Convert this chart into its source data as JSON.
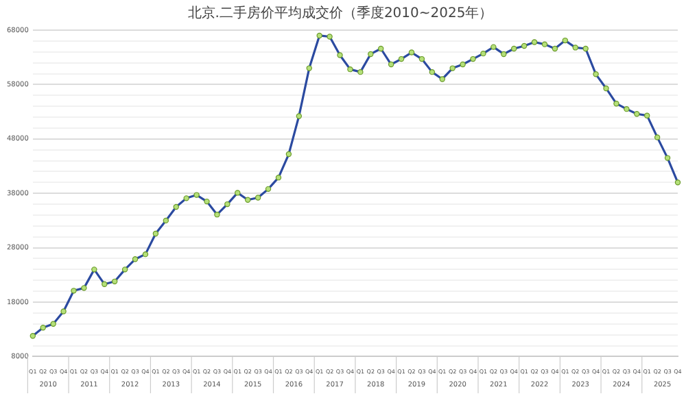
{
  "chart_data": {
    "type": "line",
    "title": "北京.二手房价平均成交价（季度2010~2025年）",
    "categories": [
      "Q1",
      "Q2",
      "Q3",
      "Q4",
      "Q1",
      "Q2",
      "Q3",
      "Q4",
      "Q1",
      "Q2",
      "Q3",
      "Q4",
      "Q1",
      "Q2",
      "Q3",
      "Q4",
      "Q1",
      "Q2",
      "Q3",
      "Q4",
      "Q1",
      "Q2",
      "Q3",
      "Q4",
      "Q1",
      "Q2",
      "Q3",
      "Q4",
      "Q1",
      "Q2",
      "Q3",
      "Q4",
      "Q1",
      "Q2",
      "Q3",
      "Q4",
      "Q1",
      "Q2",
      "Q3",
      "Q4",
      "Q1",
      "Q2",
      "Q3",
      "Q4",
      "Q1",
      "Q2",
      "Q3",
      "Q4",
      "Q1",
      "Q2",
      "Q3",
      "Q4",
      "Q1",
      "Q2",
      "Q3",
      "Q4",
      "Q1",
      "Q2",
      "Q3",
      "Q4",
      "Q1",
      "Q2",
      "Q3",
      "Q4"
    ],
    "series": [
      {
        "color": "#2b4aa0",
        "values": [
          11800,
          13300,
          14000,
          16300,
          20100,
          20600,
          24000,
          21300,
          21800,
          24000,
          25900,
          26800,
          30600,
          33000,
          35500,
          37100,
          37700,
          36500,
          34100,
          36000,
          38100,
          36800,
          37200,
          38800,
          40900,
          45200,
          52200,
          61000,
          67000,
          66800,
          63400,
          60800,
          60300,
          63600,
          64600,
          61700,
          62700,
          63900,
          62700,
          60300,
          59000,
          61000,
          61700,
          62700,
          63700,
          64900,
          63600,
          64600,
          65100,
          65800,
          65400,
          64600,
          66100,
          64800,
          64600,
          59900,
          57300,
          54500,
          53500,
          52600,
          52300,
          48300,
          44500,
          40000
        ]
      }
    ],
    "ylim": [
      8000,
      68000
    ],
    "yticks": [
      8000,
      {
        "value": 10000,
        "label": null
      },
      {
        "value": 12000,
        "label": null
      },
      {
        "value": 14000,
        "label": null
      },
      {
        "value": 16000,
        "label": null
      },
      18000,
      {
        "value": 20000,
        "label": null
      },
      {
        "value": 22000,
        "label": null
      },
      {
        "value": 24000,
        "label": null
      },
      {
        "value": 26000,
        "label": null
      },
      28000,
      {
        "value": 30000,
        "label": null
      },
      {
        "value": 32000,
        "label": null
      },
      {
        "value": 34000,
        "label": null
      },
      {
        "value": 36000,
        "label": null
      },
      38000,
      {
        "value": 40000,
        "label": null
      },
      {
        "value": 42000,
        "label": null
      },
      {
        "value": 44000,
        "label": null
      },
      {
        "value": 46000,
        "label": null
      },
      48000,
      {
        "value": 50000,
        "label": null
      },
      {
        "value": 52000,
        "label": null
      },
      {
        "value": 54000,
        "label": null
      },
      {
        "value": 56000,
        "label": null
      },
      58000,
      {
        "value": 60000,
        "label": null
      },
      {
        "value": 62000,
        "label": null
      },
      {
        "value": 64000,
        "label": null
      },
      {
        "value": 66000,
        "label": null
      },
      68000
    ],
    "annotations": [
      "2010",
      "2011",
      "2012",
      "2013",
      "2014",
      "2015",
      "2016",
      "2017",
      "2018",
      "2019",
      "2020",
      "2021",
      "2022",
      "2023",
      "2024",
      "2025"
    ],
    "grid": "y",
    "marker": "circle",
    "line_style": "solid",
    "legend": false
  }
}
